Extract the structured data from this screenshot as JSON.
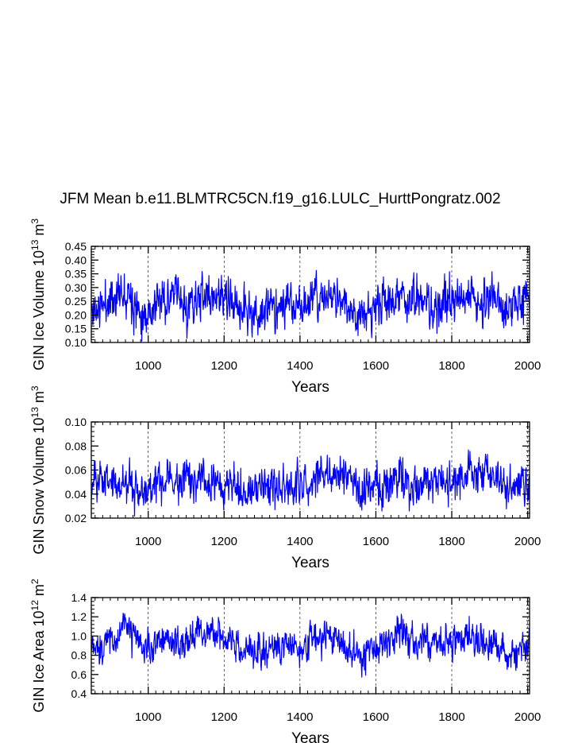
{
  "title": "JFM Mean b.e11.BLMTRC5CN.f19_g16.LULC_HurttPongratz.002",
  "colors": {
    "series": "#0000ff",
    "axis": "#000000",
    "grid": "#000000"
  },
  "chart_data": [
    {
      "type": "line",
      "id": "ice-volume",
      "ylabel_main": "GIN Ice Volume 10",
      "ylabel_exp1": "13",
      "ylabel_unit": " m",
      "ylabel_exp2": "3",
      "xlabel": "Years",
      "xlim": [
        850,
        2005
      ],
      "ylim": [
        0.1,
        0.45
      ],
      "yticks": [
        "0.10",
        "0.15",
        "0.20",
        "0.25",
        "0.30",
        "0.35",
        "0.40",
        "0.45"
      ],
      "ytick_values": [
        0.1,
        0.15,
        0.2,
        0.25,
        0.3,
        0.35,
        0.4,
        0.45
      ],
      "xticks": [
        "1000",
        "1200",
        "1400",
        "1600",
        "1800",
        "2000"
      ],
      "xtick_values": [
        1000,
        1200,
        1400,
        1600,
        1800,
        2000
      ],
      "grid": true,
      "series": [
        {
          "name": "GIN Ice Volume",
          "color": "#0000ff",
          "mean": 0.245,
          "sd": 0.045,
          "seed": 11,
          "anchors": [
            [
              850,
              0.21
            ],
            [
              875,
              0.23
            ],
            [
              905,
              0.26
            ],
            [
              945,
              0.3
            ],
            [
              975,
              0.22
            ],
            [
              1000,
              0.21
            ],
            [
              1040,
              0.26
            ],
            [
              1075,
              0.27
            ],
            [
              1100,
              0.22
            ],
            [
              1130,
              0.26
            ],
            [
              1190,
              0.27
            ],
            [
              1200,
              0.25
            ],
            [
              1260,
              0.22
            ],
            [
              1275,
              0.19
            ],
            [
              1330,
              0.23
            ],
            [
              1400,
              0.24
            ],
            [
              1460,
              0.26
            ],
            [
              1500,
              0.26
            ],
            [
              1550,
              0.21
            ],
            [
              1600,
              0.22
            ],
            [
              1660,
              0.27
            ],
            [
              1700,
              0.25
            ],
            [
              1760,
              0.23
            ],
            [
              1800,
              0.24
            ],
            [
              1860,
              0.26
            ],
            [
              1900,
              0.25
            ],
            [
              1960,
              0.23
            ],
            [
              2005,
              0.26
            ]
          ]
        }
      ]
    },
    {
      "type": "line",
      "id": "snow-volume",
      "ylabel_main": "GIN Snow Volume 10",
      "ylabel_exp1": "13",
      "ylabel_unit": " m",
      "ylabel_exp2": "3",
      "xlabel": "Years",
      "xlim": [
        850,
        2005
      ],
      "ylim": [
        0.02,
        0.1
      ],
      "yticks": [
        "0.02",
        "0.04",
        "0.06",
        "0.08",
        "0.10"
      ],
      "ytick_values": [
        0.02,
        0.04,
        0.06,
        0.08,
        0.1
      ],
      "xticks": [
        "1000",
        "1200",
        "1400",
        "1600",
        "1800",
        "2000"
      ],
      "xtick_values": [
        1000,
        1200,
        1400,
        1600,
        1800,
        2000
      ],
      "grid": true,
      "series": [
        {
          "name": "GIN Snow Volume",
          "color": "#0000ff",
          "mean": 0.05,
          "sd": 0.0095,
          "seed": 23,
          "anchors": [
            [
              850,
              0.045
            ],
            [
              880,
              0.055
            ],
            [
              920,
              0.05
            ],
            [
              960,
              0.045
            ],
            [
              1000,
              0.043
            ],
            [
              1060,
              0.052
            ],
            [
              1100,
              0.05
            ],
            [
              1150,
              0.052
            ],
            [
              1200,
              0.05
            ],
            [
              1270,
              0.045
            ],
            [
              1330,
              0.048
            ],
            [
              1400,
              0.046
            ],
            [
              1470,
              0.058
            ],
            [
              1520,
              0.055
            ],
            [
              1560,
              0.043
            ],
            [
              1600,
              0.046
            ],
            [
              1660,
              0.052
            ],
            [
              1700,
              0.045
            ],
            [
              1760,
              0.05
            ],
            [
              1800,
              0.048
            ],
            [
              1860,
              0.056
            ],
            [
              1900,
              0.055
            ],
            [
              1960,
              0.044
            ],
            [
              2005,
              0.052
            ]
          ]
        }
      ]
    },
    {
      "type": "line",
      "id": "ice-area",
      "ylabel_main": "GIN Ice Area 10",
      "ylabel_exp1": "12",
      "ylabel_unit": " m",
      "ylabel_exp2": "2",
      "xlabel": "Years",
      "xlim": [
        850,
        2005
      ],
      "ylim": [
        0.4,
        1.4
      ],
      "yticks": [
        "0.4",
        "0.6",
        "0.8",
        "1.0",
        "1.2",
        "1.4"
      ],
      "ytick_values": [
        0.4,
        0.6,
        0.8,
        1.0,
        1.2,
        1.4
      ],
      "xticks": [
        "1000",
        "1200",
        "1400",
        "1600",
        "1800",
        "2000"
      ],
      "xtick_values": [
        1000,
        1200,
        1400,
        1600,
        1800,
        2000
      ],
      "grid": true,
      "series": [
        {
          "name": "GIN Ice Area",
          "color": "#0000ff",
          "mean": 0.92,
          "sd": 0.1,
          "seed": 37,
          "anchors": [
            [
              850,
              0.85
            ],
            [
              880,
              0.92
            ],
            [
              920,
              1.0
            ],
            [
              945,
              1.1
            ],
            [
              980,
              0.88
            ],
            [
              1000,
              0.85
            ],
            [
              1040,
              0.98
            ],
            [
              1075,
              0.95
            ],
            [
              1100,
              0.88
            ],
            [
              1130,
              1.05
            ],
            [
              1190,
              1.0
            ],
            [
              1200,
              0.98
            ],
            [
              1260,
              0.85
            ],
            [
              1300,
              0.9
            ],
            [
              1350,
              0.88
            ],
            [
              1400,
              0.9
            ],
            [
              1460,
              1.0
            ],
            [
              1500,
              0.95
            ],
            [
              1550,
              0.8
            ],
            [
              1600,
              0.85
            ],
            [
              1660,
              1.05
            ],
            [
              1700,
              0.9
            ],
            [
              1760,
              0.95
            ],
            [
              1800,
              0.95
            ],
            [
              1860,
              1.0
            ],
            [
              1900,
              0.92
            ],
            [
              1960,
              0.8
            ],
            [
              2005,
              0.9
            ]
          ]
        }
      ]
    }
  ]
}
